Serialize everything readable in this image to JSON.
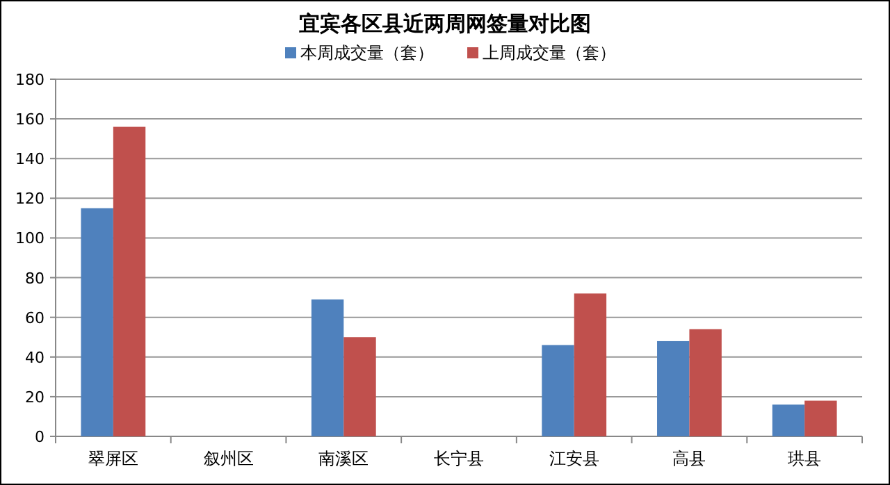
{
  "chart_data": {
    "type": "bar",
    "title": "宜宾各区县近两周网签量对比图",
    "categories": [
      "翠屏区",
      "叙州区",
      "南溪区",
      "长宁县",
      "江安县",
      "高县",
      "珙县"
    ],
    "series": [
      {
        "name": "本周成交量（套）",
        "color": "#4f81bd",
        "values": [
          115,
          null,
          69,
          null,
          46,
          48,
          16
        ]
      },
      {
        "name": "上周成交量（套）",
        "color": "#c0504d",
        "values": [
          156,
          null,
          50,
          null,
          72,
          54,
          18
        ]
      }
    ],
    "ylim": [
      0,
      180
    ],
    "yticks": [
      0,
      20,
      40,
      60,
      80,
      100,
      120,
      140,
      160,
      180
    ],
    "grid": "y",
    "legend": "top"
  }
}
